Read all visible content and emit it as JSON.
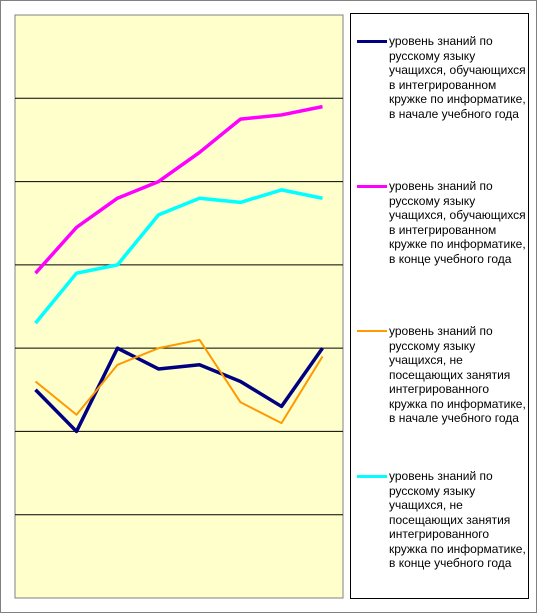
{
  "chart_data": {
    "type": "line",
    "categories": [
      null,
      null,
      null,
      null,
      null,
      null,
      null,
      null
    ],
    "ylim": [
      0,
      7
    ],
    "yticks": [
      0,
      1,
      2,
      3,
      4,
      5,
      6,
      7
    ],
    "grid": true,
    "series": [
      {
        "name": "уровень знаний по русскому языку учащихся, обучающихся в интегрированном кружке по информатике, в начале учебного года",
        "color": "#000080",
        "values": [
          2.5,
          2.0,
          3.0,
          2.75,
          2.8,
          2.6,
          2.3,
          3.0
        ]
      },
      {
        "name": "уровень знаний по русскому языку учащихся, обучающихся в интегрированном кружке по информатике, в конце учебного года",
        "color": "#ff00ff",
        "values": [
          3.9,
          4.45,
          4.8,
          5.0,
          5.35,
          5.75,
          5.8,
          5.9
        ]
      },
      {
        "name": "уровень знаний по русскому языку учащихся, не посещающих занятия интегрированного кружка по информатике, в начале учебного года",
        "color": "#ff9900",
        "values": [
          2.6,
          2.2,
          2.8,
          3.0,
          3.1,
          2.35,
          2.1,
          2.9
        ]
      },
      {
        "name": "уровень знаний по русскому языку учащихся, не посещающих занятия интегрированного кружка по информатике, в конце учебного года",
        "color": "#00ffff",
        "values": [
          3.3,
          3.9,
          4.0,
          4.6,
          4.8,
          4.75,
          4.9,
          4.8
        ]
      }
    ]
  }
}
